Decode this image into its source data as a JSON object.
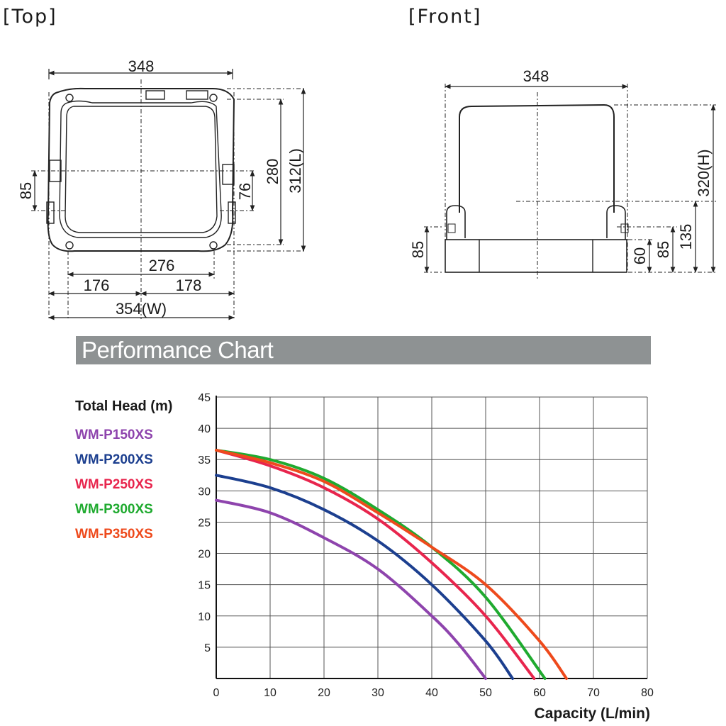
{
  "drawing": {
    "top_view": {
      "title": "[Top]",
      "width_overall": "348",
      "length_total": "312(L)",
      "inner_length": "280",
      "side_offset": "76",
      "left_offset": "85",
      "base_span": "276",
      "half_left": "176",
      "half_right": "178",
      "overall_width": "354(W)"
    },
    "front_view": {
      "title": "[Front]",
      "width_overall": "348",
      "height_total": "320(H)",
      "left_height": "85",
      "base_height": "60",
      "mid_height": "85",
      "outlet_height": "135"
    }
  },
  "banner": {
    "title": "Performance Chart"
  },
  "colors": {
    "WM-P150XS": "#8e44ad",
    "WM-P200XS": "#1c3f8f",
    "WM-P250XS": "#e8254d",
    "WM-P300XS": "#1faa2f",
    "WM-P350XS": "#ee4a1c"
  },
  "chart_data": {
    "type": "line",
    "ylabel": "Total Head (m)",
    "xlabel": "Capacity (L/min)",
    "xlim": [
      0,
      80
    ],
    "ylim": [
      0,
      45
    ],
    "xticks": [
      0,
      10,
      20,
      30,
      40,
      50,
      60,
      70,
      80
    ],
    "yticks": [
      5,
      10,
      15,
      20,
      25,
      30,
      35,
      40,
      45
    ],
    "grid": true,
    "legend_position": "left",
    "series": [
      {
        "name": "WM-P150XS",
        "x": [
          0,
          10,
          20,
          30,
          40,
          45,
          50
        ],
        "y": [
          28.5,
          26.5,
          22.5,
          17.5,
          10.0,
          5.5,
          0
        ]
      },
      {
        "name": "WM-P200XS",
        "x": [
          0,
          10,
          20,
          30,
          40,
          50,
          55
        ],
        "y": [
          32.5,
          30.5,
          27.0,
          22.0,
          15.0,
          6.0,
          0
        ]
      },
      {
        "name": "WM-P250XS",
        "x": [
          0,
          10,
          20,
          30,
          40,
          50,
          59
        ],
        "y": [
          36.5,
          34.0,
          30.5,
          25.5,
          18.5,
          10.0,
          0
        ]
      },
      {
        "name": "WM-P300XS",
        "x": [
          0,
          10,
          20,
          30,
          40,
          50,
          61
        ],
        "y": [
          36.5,
          35.0,
          32.0,
          27.0,
          21.0,
          13.0,
          0
        ]
      },
      {
        "name": "WM-P350XS",
        "x": [
          0,
          10,
          20,
          30,
          40,
          50,
          60,
          65
        ],
        "y": [
          36.5,
          34.5,
          31.5,
          26.5,
          21.0,
          15.0,
          6.0,
          0
        ]
      }
    ]
  }
}
